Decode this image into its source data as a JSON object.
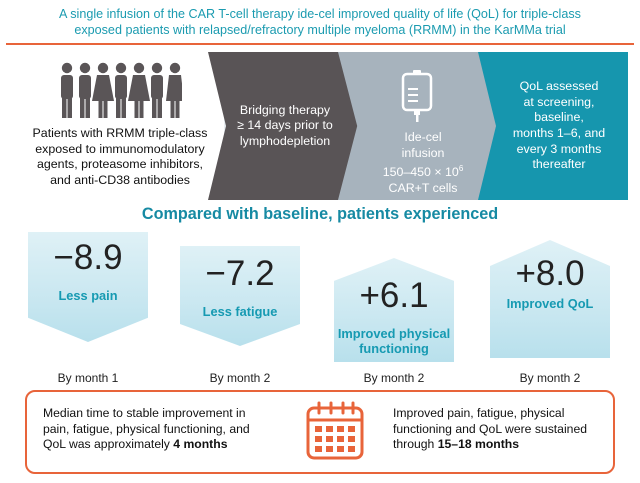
{
  "title": {
    "line1": "A single infusion of the CAR T-cell therapy ide-cel improved quality of life (QoL) for triple-class",
    "line2": "exposed patients with relapsed/refractory multiple myeloma (RRMM) in the KarMMa trial"
  },
  "flow": {
    "patients": [
      "Patients with RRMM triple-class",
      "exposed to immunomodulatory",
      "agents, proteasome inhibitors,",
      "and anti-CD38 antibodies"
    ],
    "bridging": [
      "Bridging therapy",
      "≥ 14 days prior to",
      "lymphodepletion"
    ],
    "infusion": [
      "Ide-cel",
      "infusion",
      "150–450 × 10",
      "6",
      "CAR+T cells"
    ],
    "qol": [
      "QoL assessed",
      "at screening,",
      "baseline,",
      "months 1–6, and",
      "every 3 months",
      "thereafter"
    ]
  },
  "subhead": "Compared with baseline, patients experienced",
  "stats": [
    {
      "value": "−8.9",
      "label": "Less pain",
      "month": "By month 1"
    },
    {
      "value": "−7.2",
      "label": "Less fatigue",
      "month": "By month 2"
    },
    {
      "value": "+6.1",
      "label_line1": "Improved physical",
      "label_line2": "functioning",
      "month": "By month 2"
    },
    {
      "value": "+8.0",
      "label": "Improved QoL",
      "month": "By month 2"
    }
  ],
  "bottom": {
    "left_lines": [
      "Median time to stable improvement in",
      "pain, fatigue, physical functioning, and",
      "QoL was approximately "
    ],
    "left_bold": "4 months",
    "right_lines": [
      "Improved pain, fatigue, physical",
      "functioning and QoL were sustained",
      "through "
    ],
    "right_bold": "15–18 months"
  },
  "icons": [
    "people-icon",
    "iv-bag-icon",
    "calendar-icon"
  ],
  "colors": {
    "teal": "#1696ae",
    "orange": "#e8643a",
    "dark": "#595456",
    "grey": "#a7b3bd"
  }
}
